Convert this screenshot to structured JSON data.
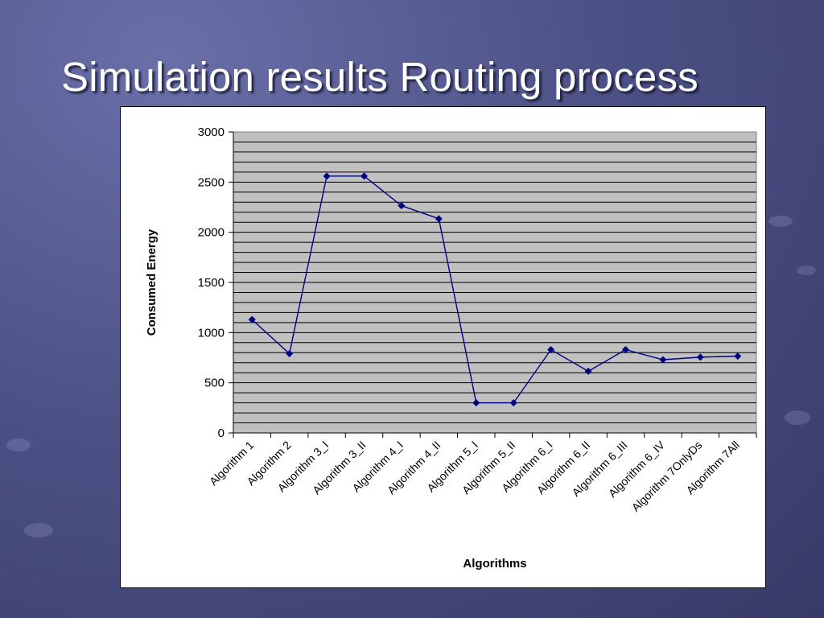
{
  "slide": {
    "title": "Simulation results Routing process"
  },
  "colors": {
    "plot_bg": "#c0c0c0",
    "line": "#000080",
    "marker": "#000080"
  },
  "chart_data": {
    "type": "line",
    "title": "",
    "xlabel": "Algorithms",
    "ylabel": "Consumed Energy",
    "ylim": [
      0,
      3000
    ],
    "yticks": [
      0,
      500,
      1000,
      1500,
      2000,
      2500,
      3000
    ],
    "grid": true,
    "legend": "none",
    "categories": [
      "Algorithm 1",
      "Algorithm 2",
      "Algorithm 3_I",
      "Algorithm 3_II",
      "Algorithm 4_I",
      "Algorithm 4_II",
      "Algorithm 5_I",
      "Algorithm 5_II",
      "Algorithm 6_I",
      "Algorithm 6_II",
      "Algorithm 6_III",
      "Algorithm 6_IV",
      "Algorithm 7OnlyDs",
      "Algorithm 7All"
    ],
    "series": [
      {
        "values": [
          1130,
          790,
          2560,
          2560,
          2265,
          2135,
          300,
          300,
          830,
          615,
          830,
          730,
          755,
          765
        ]
      }
    ]
  }
}
